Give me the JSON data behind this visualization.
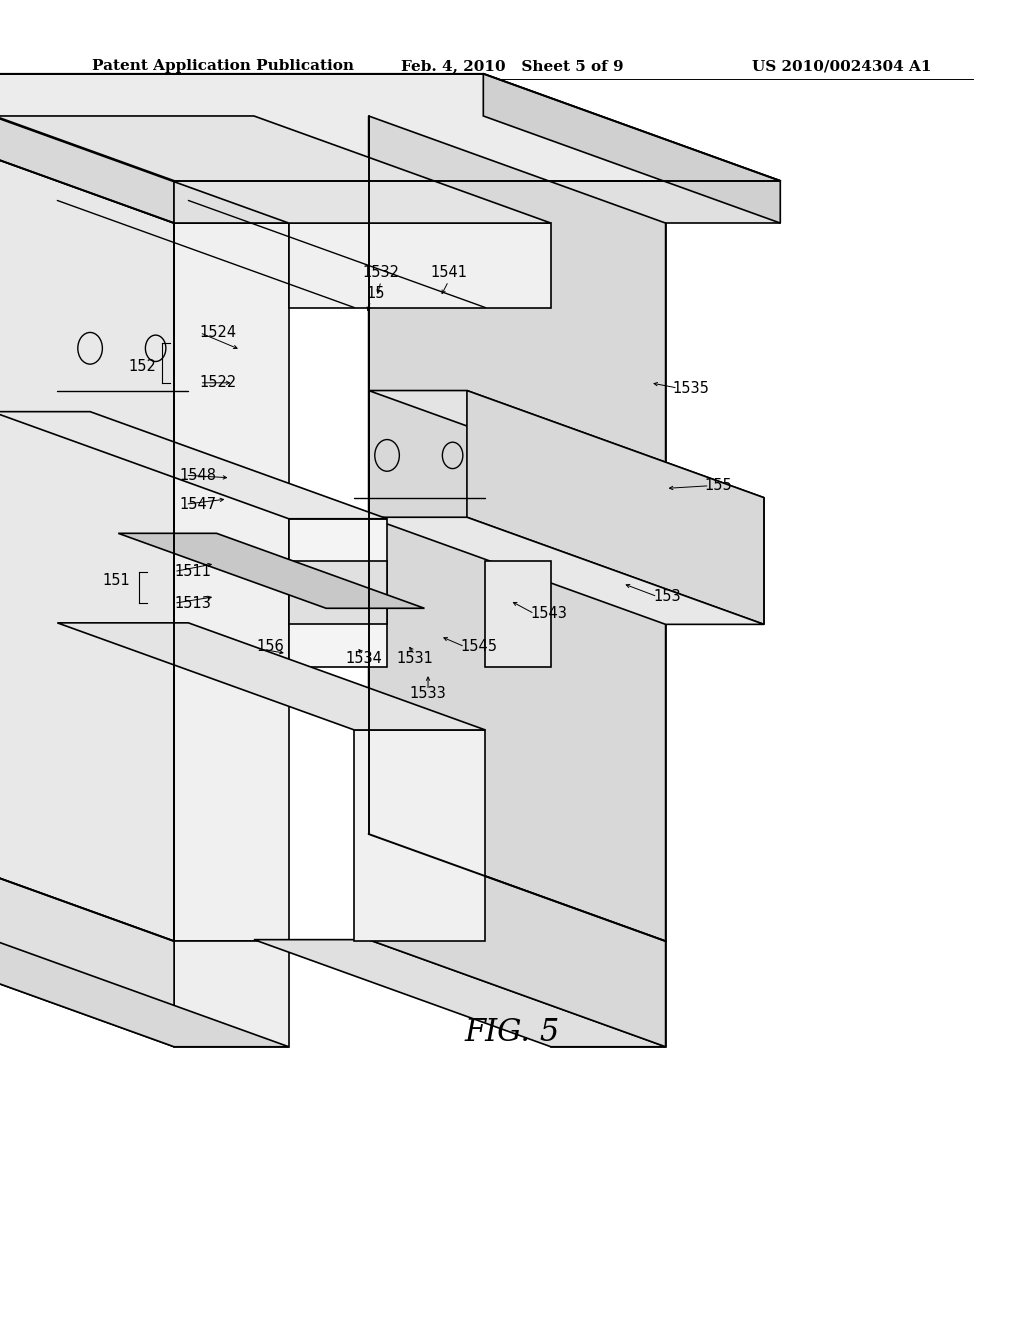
{
  "background_color": "#ffffff",
  "header_left": "Patent Application Publication",
  "header_center": "Feb. 4, 2010   Sheet 5 of 9",
  "header_right": "US 2010/0024304 A1",
  "figure_label": "FIG. 5",
  "header_font_size": 11,
  "figure_font_size": 22,
  "ox": 0.41,
  "oy": 0.575,
  "scale": 0.16,
  "cos_a_deg": 25,
  "sin_a_factor": 0.6
}
